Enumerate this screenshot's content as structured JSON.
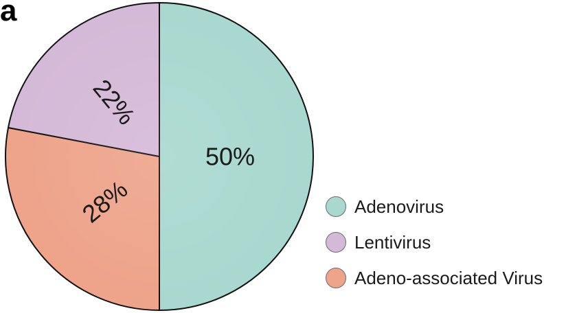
{
  "panel_label": "a",
  "chart_data": {
    "type": "pie",
    "title": "",
    "slices": [
      {
        "label": "Adenovirus",
        "value": 50,
        "display": "50%",
        "color": "#a8d8cf"
      },
      {
        "label": "Adeno-associated Virus",
        "value": 28,
        "display": "28%",
        "color": "#eea38a"
      },
      {
        "label": "Lentivirus",
        "value": 22,
        "display": "22%",
        "color": "#d5b9d8"
      }
    ],
    "legend": {
      "placement": "bottom-right",
      "entries": [
        {
          "label": "Adenovirus",
          "color": "#a8d8cf"
        },
        {
          "label": "Lentivirus",
          "color": "#d5b9d8"
        },
        {
          "label": "Adeno-associated Virus",
          "color": "#eea38a"
        }
      ]
    }
  }
}
